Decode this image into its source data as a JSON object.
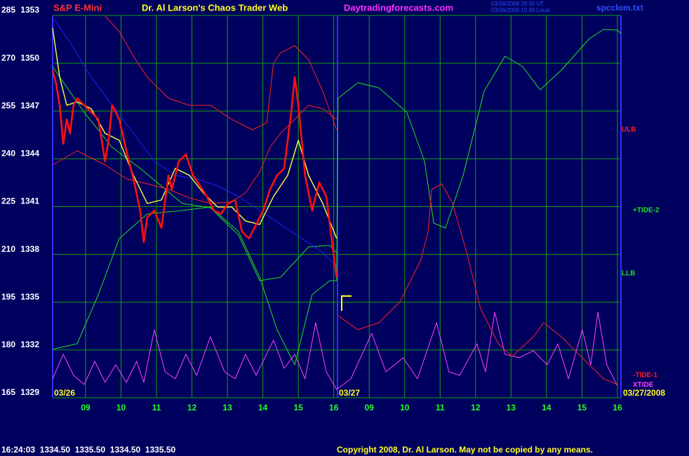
{
  "chart_data": {
    "type": "line",
    "title": "S&P E-Mini",
    "subtitle": "Dr. Al Larson's Chaos Trader Web",
    "site": "Daytradingforecasts.com",
    "timestamps": [
      "03/26/2008 20:30 UT",
      "03/26/2008 15:30 Local"
    ],
    "file": "spcclom.txt",
    "date_labels": [
      "03/26",
      "03/27",
      "03/27/2008"
    ],
    "status": "16:24:03  1334.50  1335.50  1334.50  1335.50",
    "copyright": "Copyright 2008, Dr. Al Larson. May not be copied by any means.",
    "grid": true,
    "xlim": [
      8.07,
      24.1
    ],
    "xticks": [
      {
        "value": 9,
        "label": "09"
      },
      10,
      11,
      12,
      13,
      14,
      15,
      16,
      {
        "value": 17,
        "label": "09"
      },
      {
        "value": 18,
        "label": "10"
      },
      {
        "value": 19,
        "label": "11"
      },
      {
        "value": 20,
        "label": "12"
      },
      {
        "value": 21,
        "label": "13"
      },
      {
        "value": 22,
        "label": "14"
      },
      {
        "value": 23,
        "label": "15"
      },
      {
        "value": 24,
        "label": "16"
      }
    ],
    "ylim": [
      1329,
      1353
    ],
    "yticks": [
      1329,
      1332,
      1335,
      1338,
      1341,
      1344,
      1347,
      1350,
      1353
    ],
    "y2lim": [
      165,
      285
    ],
    "y2ticks": [
      165,
      180,
      195,
      210,
      225,
      240,
      255,
      270,
      285
    ],
    "series": [
      {
        "name": "XTIDE",
        "color": "#ff40ff",
        "axis": "y2",
        "x": [
          8.07,
          8.37,
          8.66,
          8.96,
          9.26,
          9.55,
          9.85,
          10.15,
          10.44,
          10.64,
          10.94,
          11.24,
          11.53,
          11.83,
          12.13,
          12.52,
          12.92,
          13.22,
          13.51,
          13.81,
          14.3,
          14.6,
          14.9,
          15.19,
          15.49,
          15.79,
          16.08,
          16.48,
          17.07,
          17.47,
          17.96,
          18.36,
          18.9,
          19.25,
          19.55,
          20.04,
          20.28,
          20.54,
          20.83,
          21.23,
          21.63,
          22.02,
          22.32,
          22.62,
          23.01,
          23.25,
          23.45,
          23.7,
          24.0
        ],
        "values": [
          170.94,
          178.65,
          172.05,
          169.18,
          176.45,
          169.84,
          175.35,
          169.84,
          176.45,
          169.84,
          186.36,
          173.15,
          170.94,
          178.65,
          172.05,
          184.15,
          173.15,
          170.94,
          178.65,
          172.05,
          183.05,
          174.25,
          178.65,
          170.94,
          188.56,
          173.15,
          167.64,
          170.94,
          185.26,
          173.15,
          177.55,
          170.94,
          188.56,
          173.15,
          172.05,
          181.95,
          173.15,
          191.86,
          178.65,
          177.55,
          179.75,
          175.35,
          181.95,
          170.94,
          186.36,
          175.35,
          191.86,
          175.35,
          168.74
        ]
      },
      {
        "name": "+TIDE-2",
        "color": "#20e020",
        "axis": "y2",
        "x": [
          8.07,
          8.76,
          9.36,
          9.95,
          10.74,
          11.73,
          12.52,
          13.31,
          13.91,
          14.4,
          14.9,
          15.39,
          15.89,
          16.08,
          16.12,
          16.68,
          17.27,
          18.06,
          18.56,
          18.82,
          19.15,
          19.65,
          20.24,
          20.83,
          21.33,
          21.82,
          22.42,
          23.21,
          23.61,
          24.0,
          24.1
        ],
        "values": [
          180.19,
          181.95,
          197.36,
          214.98,
          222.68,
          223.79,
          224.89,
          217.18,
          202.87,
          186.36,
          175.35,
          197.36,
          201.77,
          201.77,
          259.01,
          263.86,
          262.31,
          254.61,
          239.2,
          219.82,
          218.28,
          234.79,
          261.21,
          272.22,
          268.92,
          261.65,
          267.82,
          277.73,
          280.59,
          280.37,
          279.27
        ]
      },
      {
        "name": "-TIDE-1",
        "color": "#ff2020",
        "axis": "y2",
        "x": [
          16.12,
          16.68,
          17.27,
          17.87,
          18.46,
          18.66,
          18.76,
          19.05,
          19.35,
          19.75,
          20.14,
          20.64,
          21.03,
          21.63,
          21.92,
          22.42,
          23.01,
          23.61,
          24.0
        ],
        "values": [
          190.76,
          186.36,
          188.56,
          195.16,
          208.37,
          217.18,
          230.39,
          232.15,
          225.99,
          210.57,
          192.96,
          181.95,
          177.99,
          184.15,
          188.56,
          184.15,
          177.55,
          170.94,
          169.18
        ]
      },
      {
        "name": "LLB",
        "color": "#20e020",
        "x": [
          8.07,
          8.96,
          9.75,
          10.54,
          11.73,
          12.52,
          13.31,
          13.91,
          14.5,
          15.29,
          15.89,
          16.08
        ],
        "values": [
          1349.78,
          1346.92,
          1344.72,
          1343.4,
          1341.2,
          1340.93,
          1339.22,
          1336.35,
          1336.57,
          1338.47,
          1338.56,
          1338.11
        ]
      },
      {
        "name": "ULB",
        "color": "#ff2020",
        "x": [
          9.55,
          9.95,
          10.35,
          10.74,
          11.34,
          11.93,
          12.52,
          13.12,
          13.71,
          14.11,
          14.3,
          14.5,
          14.9,
          15.29,
          15.69,
          16.08
        ],
        "values": [
          1352.95,
          1351.99,
          1350.44,
          1349.12,
          1347.8,
          1347.36,
          1347.36,
          1346.48,
          1345.82,
          1346.26,
          1350.0,
          1350.66,
          1351.1,
          1350.22,
          1348.24,
          1345.82
        ]
      },
      {
        "color": "#ff2020",
        "x": [
          8.07,
          8.76,
          9.55,
          10.15,
          10.74,
          11.34,
          11.93,
          12.52,
          13.12,
          13.51,
          13.91,
          14.2,
          14.5,
          14.9,
          15.29,
          15.69,
          16.08
        ],
        "values": [
          1343.62,
          1344.5,
          1343.62,
          1342.74,
          1342.43,
          1342.08,
          1341.55,
          1341.2,
          1341.29,
          1341.86,
          1343.18,
          1344.72,
          1345.6,
          1346.48,
          1347.36,
          1347.14,
          1346.48
        ]
      },
      {
        "color": "#2020ff",
        "x": [
          8.07,
          8.56,
          9.16,
          9.75,
          10.35,
          10.94,
          11.53,
          12.13,
          12.72,
          13.31,
          13.91,
          14.5,
          15.1,
          15.69,
          16.08
        ],
        "values": [
          1352.87,
          1351.33,
          1349.12,
          1347.36,
          1345.6,
          1343.84,
          1342.96,
          1342.74,
          1342.3,
          1341.64,
          1340.76,
          1339.88,
          1339.0,
          1338.11,
          1337.23
        ]
      },
      {
        "color": "#ffff40",
        "x": [
          8.07,
          8.27,
          8.47,
          8.76,
          9.16,
          9.55,
          9.95,
          10.35,
          10.74,
          11.14,
          11.53,
          11.93,
          12.32,
          12.72,
          13.12,
          13.51,
          13.91,
          14.3,
          14.7,
          15.0,
          15.29,
          15.69,
          16.08
        ],
        "values": [
          1352.21,
          1349.12,
          1347.36,
          1347.58,
          1347.14,
          1345.6,
          1345.16,
          1342.96,
          1341.2,
          1341.42,
          1343.4,
          1342.96,
          1341.86,
          1340.98,
          1340.98,
          1340.1,
          1339.88,
          1341.64,
          1342.96,
          1345.16,
          1342.96,
          1341.2,
          1339.0
        ]
      },
      {
        "color": "#ff1010",
        "x": [
          8.07,
          8.17,
          8.27,
          8.37,
          8.47,
          8.56,
          8.66,
          8.76,
          8.96,
          9.16,
          9.36,
          9.55,
          9.65,
          9.75,
          9.95,
          10.15,
          10.35,
          10.54,
          10.64,
          10.74,
          10.94,
          11.14,
          11.34,
          11.43,
          11.63,
          11.83,
          12.03,
          12.23,
          12.42,
          12.62,
          12.82,
          13.02,
          13.22,
          13.41,
          13.61,
          13.81,
          14.01,
          14.2,
          14.4,
          14.6,
          14.8,
          14.9,
          15.0,
          15.19,
          15.39,
          15.59,
          15.79,
          15.99,
          16.08
        ],
        "values": [
          1349.56,
          1348.68,
          1347.36,
          1344.94,
          1346.48,
          1345.6,
          1347.36,
          1347.8,
          1347.36,
          1346.92,
          1346.48,
          1343.84,
          1345.16,
          1347.36,
          1346.48,
          1344.5,
          1342.74,
          1340.76,
          1338.78,
          1340.32,
          1340.76,
          1339.66,
          1342.96,
          1342.08,
          1343.84,
          1344.28,
          1342.96,
          1342.3,
          1341.64,
          1340.76,
          1340.54,
          1341.2,
          1341.42,
          1339.44,
          1339.0,
          1339.88,
          1340.76,
          1342.08,
          1342.96,
          1343.4,
          1346.92,
          1349.12,
          1347.36,
          1342.96,
          1340.76,
          1342.52,
          1341.64,
          1338.11,
          1336.57
        ]
      }
    ]
  }
}
